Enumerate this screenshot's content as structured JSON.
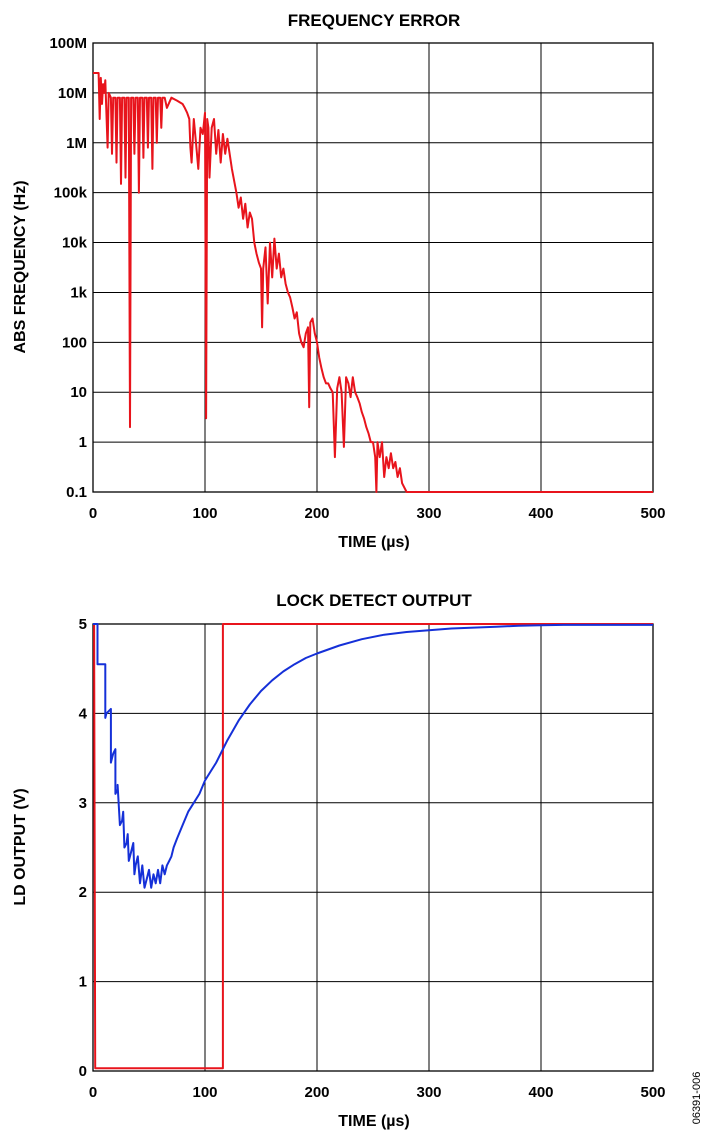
{
  "figure_id": "06391-006",
  "chart_data": [
    {
      "type": "line",
      "title": "FREQUENCY ERROR",
      "xlabel": "TIME (µs)",
      "ylabel": "ABS FREQUENCY (Hz)",
      "xlim": [
        0,
        500
      ],
      "ylim": [
        0.1,
        100000000
      ],
      "yscale": "log",
      "grid": true,
      "x_ticks": [
        0,
        100,
        200,
        300,
        400,
        500
      ],
      "x_tick_labels": [
        "0",
        "100",
        "200",
        "300",
        "400",
        "500"
      ],
      "y_ticks": [
        0.1,
        1,
        10,
        100,
        1000,
        10000,
        100000,
        1000000,
        10000000,
        100000000
      ],
      "y_tick_labels": [
        "0.1",
        "1",
        "10",
        "100",
        "1k",
        "10k",
        "100k",
        "1M",
        "10M",
        "100M"
      ],
      "series": [
        {
          "color": "#e8141c",
          "x": [
            0,
            5,
            6,
            7,
            8,
            9,
            10,
            11,
            12,
            13,
            14,
            16,
            17,
            18,
            20,
            21,
            22,
            24,
            25,
            26,
            28,
            29,
            30,
            32,
            33,
            34,
            36,
            37,
            38,
            40,
            41,
            42,
            44,
            45,
            46,
            48,
            49,
            50,
            52,
            53,
            54,
            56,
            57,
            58,
            60,
            61,
            62,
            64,
            66,
            70,
            75,
            80,
            82,
            84,
            86,
            87,
            88,
            90,
            92,
            94,
            96,
            98,
            100,
            101,
            102,
            103,
            104,
            106,
            108,
            110,
            112,
            114,
            116,
            118,
            120,
            124,
            128,
            130,
            132,
            134,
            136,
            138,
            140,
            142,
            144,
            146,
            148,
            150,
            151,
            152,
            154,
            156,
            158,
            160,
            162,
            164,
            166,
            168,
            170,
            172,
            174,
            176,
            178,
            180,
            182,
            184,
            186,
            188,
            190,
            192,
            193,
            194,
            196,
            198,
            200,
            202,
            204,
            206,
            208,
            210,
            212,
            214,
            216,
            218,
            220,
            222,
            224,
            226,
            228,
            230,
            232,
            234,
            236,
            238,
            240,
            242,
            244,
            246,
            248,
            250,
            252,
            253,
            254,
            256,
            258,
            260,
            262,
            264,
            266,
            268,
            270,
            272,
            274,
            276,
            280,
            300,
            350,
            400,
            450,
            500
          ],
          "y": [
            25000000,
            25000000,
            3000000,
            20000000,
            6000000,
            15000000,
            10000000,
            18000000,
            4000000,
            800000,
            10000000,
            8000000,
            600000,
            8000000,
            8000000,
            400000,
            8000000,
            8000000,
            150000,
            8000000,
            8000000,
            200000,
            8000000,
            8000000,
            2,
            8000000,
            8000000,
            600000,
            8000000,
            8000000,
            100000,
            8000000,
            8000000,
            500000,
            8000000,
            8000000,
            800000,
            8000000,
            8000000,
            300000,
            8000000,
            8000000,
            1000000,
            8000000,
            8000000,
            2000000,
            8000000,
            8000000,
            5000000,
            8000000,
            7000000,
            6000000,
            5000000,
            4000000,
            3000000,
            800000,
            400000,
            3000000,
            1000000,
            300000,
            2000000,
            1500000,
            4000000,
            3,
            3000000,
            2000000,
            200000,
            2000000,
            3000000,
            600000,
            1800000,
            400000,
            1500000,
            600000,
            1200000,
            300000,
            100000,
            50000,
            80000,
            30000,
            60000,
            20000,
            40000,
            30000,
            10000,
            6000,
            4000,
            3000,
            200,
            3000,
            8000,
            600,
            10000,
            2000,
            12000,
            3000,
            6000,
            2000,
            3000,
            1500,
            1000,
            800,
            500,
            300,
            400,
            150,
            100,
            80,
            150,
            200,
            5,
            250,
            300,
            150,
            100,
            50,
            30,
            20,
            15,
            15,
            12,
            10,
            0.5,
            12,
            20,
            10,
            0.8,
            20,
            15,
            8,
            20,
            10,
            8,
            6,
            4,
            3,
            2,
            1.5,
            1,
            1,
            0.5,
            0.1,
            1,
            0.5,
            1,
            0.2,
            0.5,
            0.3,
            0.6,
            0.3,
            0.4,
            0.2,
            0.3,
            0.15,
            0.1,
            0.1,
            0.1,
            0.1,
            0.1,
            0.1
          ]
        }
      ]
    },
    {
      "type": "line",
      "title": "LOCK DETECT OUTPUT",
      "xlabel": "TIME (µs)",
      "ylabel": "LD OUTPUT (V)",
      "xlim": [
        0,
        500
      ],
      "ylim": [
        0,
        5
      ],
      "grid": true,
      "x_ticks": [
        0,
        100,
        200,
        300,
        400,
        500
      ],
      "x_tick_labels": [
        "0",
        "100",
        "200",
        "300",
        "400",
        "500"
      ],
      "y_ticks": [
        0,
        1,
        2,
        3,
        4,
        5
      ],
      "y_tick_labels": [
        "0",
        "1",
        "2",
        "3",
        "4",
        "5"
      ],
      "series": [
        {
          "color": "#e8141c",
          "x": [
            0,
            1,
            2,
            2,
            116,
            116,
            500
          ],
          "y": [
            5,
            5,
            0.03,
            0.03,
            0.03,
            5,
            5
          ]
        },
        {
          "color": "#1530d8",
          "x": [
            0,
            4,
            4,
            5,
            6,
            6,
            11,
            11,
            12,
            16,
            16,
            17,
            18,
            20,
            20,
            22,
            22,
            24,
            26,
            27,
            28,
            30,
            31,
            32,
            34,
            36,
            37,
            38,
            40,
            42,
            43,
            44,
            46,
            48,
            50,
            52,
            54,
            56,
            58,
            60,
            62,
            64,
            66,
            68,
            70,
            72,
            75,
            80,
            85,
            90,
            95,
            100,
            105,
            110,
            120,
            130,
            140,
            150,
            160,
            170,
            180,
            190,
            200,
            220,
            240,
            260,
            280,
            300,
            320,
            340,
            360,
            380,
            400,
            420,
            440,
            460,
            480,
            500
          ],
          "y": [
            5,
            5,
            4.55,
            4.55,
            4.55,
            4.55,
            4.55,
            3.95,
            4.0,
            4.05,
            3.45,
            3.5,
            3.55,
            3.6,
            3.1,
            3.15,
            3.2,
            2.75,
            2.8,
            2.9,
            2.5,
            2.55,
            2.65,
            2.35,
            2.45,
            2.55,
            2.2,
            2.3,
            2.4,
            2.1,
            2.2,
            2.3,
            2.05,
            2.15,
            2.25,
            2.05,
            2.2,
            2.1,
            2.25,
            2.1,
            2.3,
            2.2,
            2.3,
            2.35,
            2.4,
            2.5,
            2.6,
            2.75,
            2.9,
            3.0,
            3.1,
            3.25,
            3.35,
            3.45,
            3.7,
            3.92,
            4.1,
            4.25,
            4.37,
            4.47,
            4.55,
            4.62,
            4.67,
            4.76,
            4.83,
            4.88,
            4.91,
            4.93,
            4.95,
            4.96,
            4.97,
            4.98,
            4.985,
            4.99,
            4.99,
            4.99,
            4.99,
            4.99
          ]
        }
      ]
    }
  ]
}
